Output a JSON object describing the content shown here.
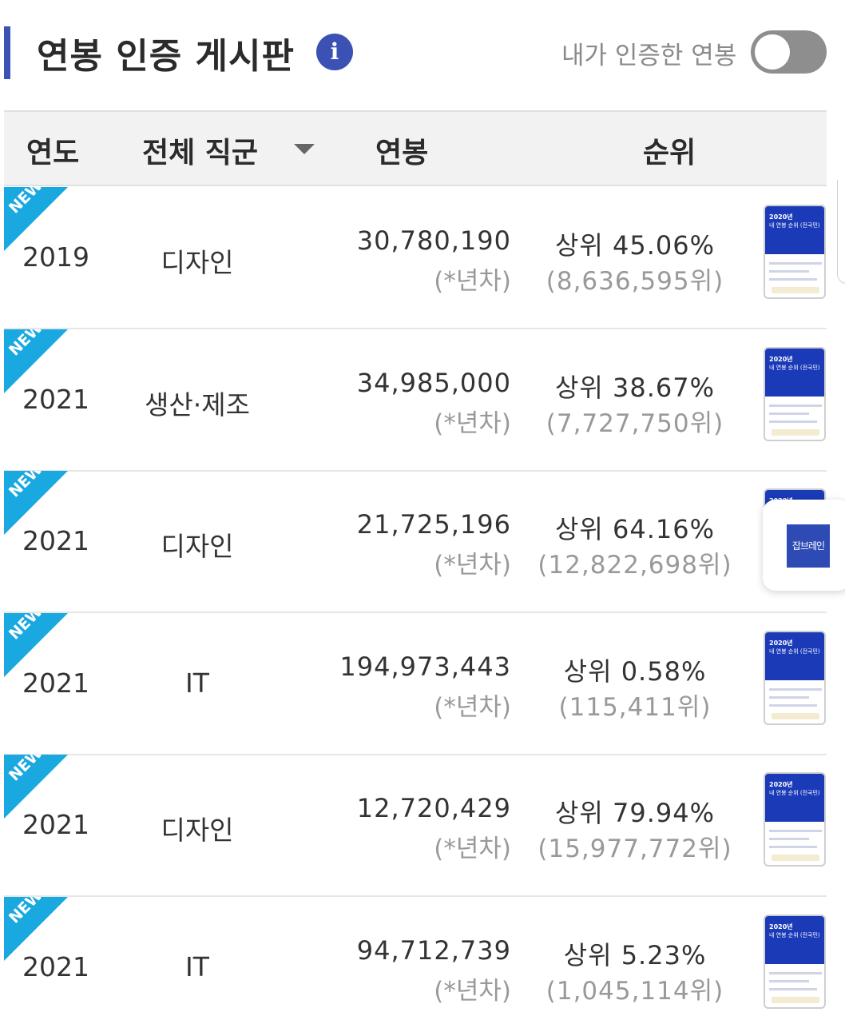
{
  "header": {
    "title": "연봉 인증 게시판",
    "info_icon": "info-icon",
    "toggle_label": "내가 인증한 연봉",
    "toggle_on": false
  },
  "table": {
    "columns": {
      "year": "연도",
      "job": "전체 직군",
      "salary": "연봉",
      "rank": "순위"
    },
    "rows": [
      {
        "badge": "NEW",
        "year": "2019",
        "job": "디자인",
        "salary": "30,780,190",
        "years_note": "(*년차)",
        "rank": "상위 45.06%",
        "rank_sub": "(8,636,595위)"
      },
      {
        "badge": "NEW",
        "year": "2021",
        "job": "생산·제조",
        "salary": "34,985,000",
        "years_note": "(*년차)",
        "rank": "상위 38.67%",
        "rank_sub": "(7,727,750위)"
      },
      {
        "badge": "NEW",
        "year": "2021",
        "job": "디자인",
        "salary": "21,725,196",
        "years_note": "(*년차)",
        "rank": "상위 64.16%",
        "rank_sub": "(12,822,698위)"
      },
      {
        "badge": "NEW",
        "year": "2021",
        "job": "IT",
        "salary": "194,973,443",
        "years_note": "(*년차)",
        "rank": "상위 0.58%",
        "rank_sub": "(115,411위)"
      },
      {
        "badge": "NEW",
        "year": "2021",
        "job": "디자인",
        "salary": "12,720,429",
        "years_note": "(*년차)",
        "rank": "상위 79.94%",
        "rank_sub": "(15,977,772위)"
      },
      {
        "badge": "NEW",
        "year": "2021",
        "job": "IT",
        "salary": "94,712,739",
        "years_note": "(*년차)",
        "rank": "상위 5.23%",
        "rank_sub": "(1,045,114위)"
      }
    ]
  },
  "thumbnail": {
    "line1": "2020년",
    "line2": "내 연봉 순위 (전국민)"
  },
  "floating_button": {
    "label": "잡브레인"
  },
  "colors": {
    "accent": "#3b52b4",
    "new_badge": "#19a8e0",
    "toggle_off": "#8e8e8e"
  }
}
